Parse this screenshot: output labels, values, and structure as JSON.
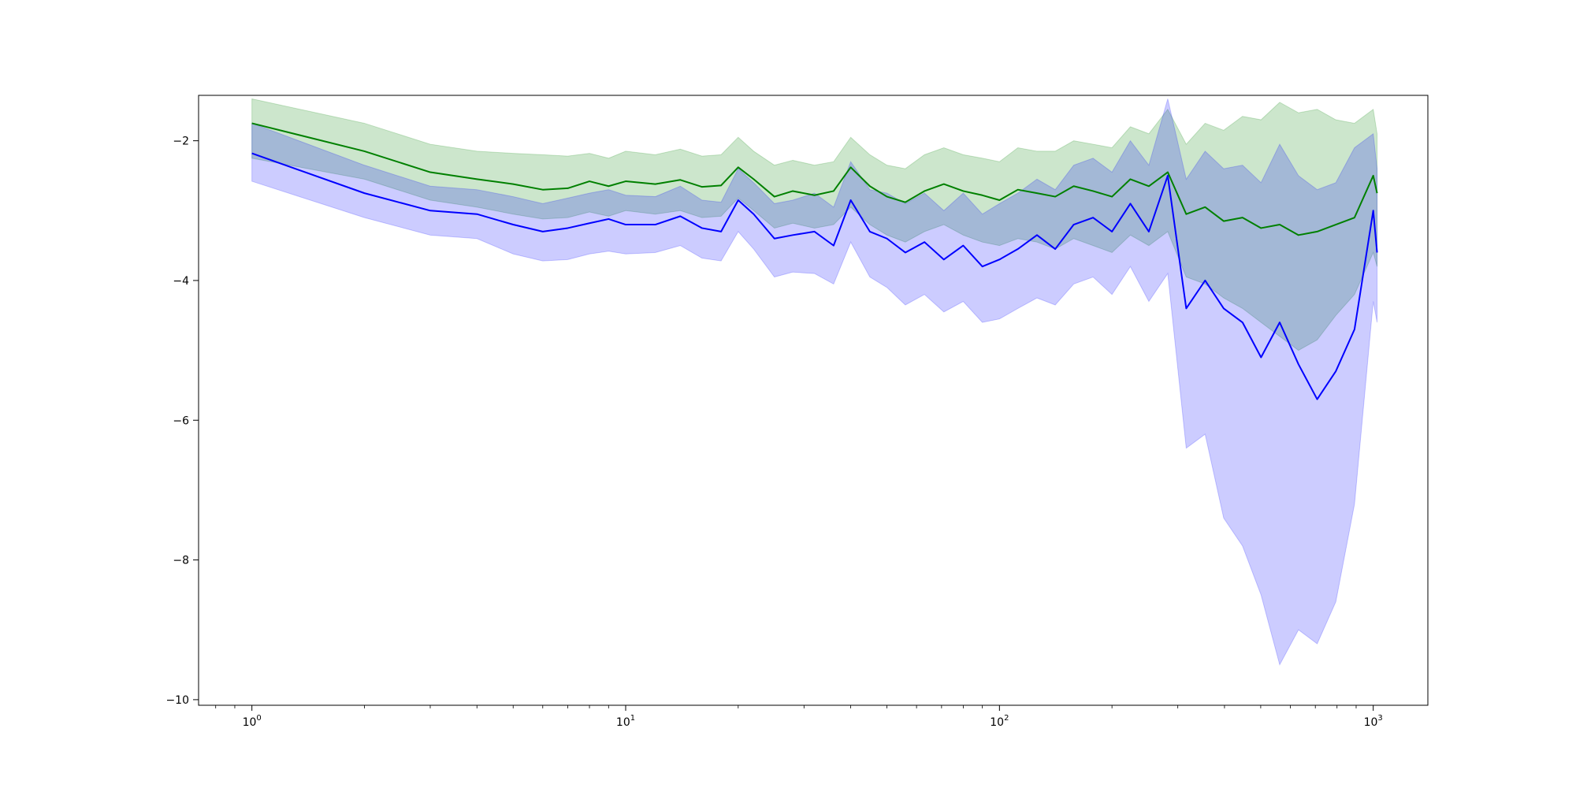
{
  "chart_data": {
    "type": "line",
    "title": "",
    "xlabel": "",
    "ylabel": "",
    "x_scale": "log",
    "xlim": [
      0.72,
      1400
    ],
    "ylim": [
      -10.08,
      -1.35
    ],
    "grid": false,
    "legend": "none",
    "x_ticks": [
      {
        "value": 1,
        "base": "10",
        "exp": "0"
      },
      {
        "value": 10,
        "base": "10",
        "exp": "1"
      },
      {
        "value": 100,
        "base": "10",
        "exp": "2"
      },
      {
        "value": 1000,
        "base": "10",
        "exp": "3"
      }
    ],
    "y_ticks": [
      {
        "value": -2,
        "label": "−2"
      },
      {
        "value": -4,
        "label": "−4"
      },
      {
        "value": -6,
        "label": "−6"
      },
      {
        "value": -8,
        "label": "−8"
      },
      {
        "value": -10,
        "label": "−10"
      }
    ],
    "series": [
      {
        "color": "#008000",
        "band_color": "#008000",
        "band_opacity": 0.2,
        "x": [
          1,
          2,
          3,
          4,
          5,
          6,
          7,
          8,
          9,
          10,
          12,
          14,
          16,
          18,
          20,
          22,
          25,
          28,
          32,
          36,
          40,
          45,
          50,
          56,
          63,
          71,
          80,
          90,
          100,
          112,
          126,
          141,
          158,
          178,
          200,
          224,
          251,
          282,
          316,
          355,
          398,
          447,
          501,
          562,
          631,
          708,
          794,
          891,
          1000,
          1024
        ],
        "values": [
          -1.75,
          -2.15,
          -2.45,
          -2.55,
          -2.62,
          -2.7,
          -2.68,
          -2.58,
          -2.65,
          -2.58,
          -2.62,
          -2.56,
          -2.66,
          -2.64,
          -2.38,
          -2.55,
          -2.8,
          -2.72,
          -2.78,
          -2.72,
          -2.38,
          -2.65,
          -2.8,
          -2.88,
          -2.72,
          -2.62,
          -2.72,
          -2.78,
          -2.85,
          -2.7,
          -2.75,
          -2.8,
          -2.65,
          -2.72,
          -2.8,
          -2.55,
          -2.65,
          -2.45,
          -3.05,
          -2.95,
          -3.15,
          -3.1,
          -3.25,
          -3.2,
          -3.35,
          -3.3,
          -3.2,
          -3.1,
          -2.5,
          -2.75
        ],
        "lower": [
          -2.25,
          -2.55,
          -2.85,
          -2.95,
          -3.05,
          -3.12,
          -3.1,
          -3.02,
          -3.08,
          -3.0,
          -3.05,
          -3.0,
          -3.1,
          -3.08,
          -2.82,
          -3.0,
          -3.25,
          -3.18,
          -3.25,
          -3.2,
          -2.95,
          -3.2,
          -3.35,
          -3.45,
          -3.3,
          -3.2,
          -3.35,
          -3.45,
          -3.5,
          -3.4,
          -3.45,
          -3.55,
          -3.4,
          -3.5,
          -3.6,
          -3.35,
          -3.5,
          -3.3,
          -3.95,
          -4.05,
          -4.25,
          -4.4,
          -4.6,
          -4.8,
          -5.0,
          -4.85,
          -4.5,
          -4.2,
          -3.6,
          -3.8
        ],
        "upper": [
          -1.4,
          -1.75,
          -2.05,
          -2.15,
          -2.18,
          -2.2,
          -2.22,
          -2.18,
          -2.25,
          -2.15,
          -2.2,
          -2.12,
          -2.22,
          -2.2,
          -1.95,
          -2.15,
          -2.35,
          -2.28,
          -2.35,
          -2.3,
          -1.95,
          -2.2,
          -2.35,
          -2.4,
          -2.2,
          -2.1,
          -2.2,
          -2.25,
          -2.3,
          -2.1,
          -2.15,
          -2.15,
          -2.0,
          -2.05,
          -2.1,
          -1.8,
          -1.9,
          -1.55,
          -2.05,
          -1.75,
          -1.85,
          -1.65,
          -1.7,
          -1.45,
          -1.6,
          -1.55,
          -1.7,
          -1.75,
          -1.55,
          -1.9
        ]
      },
      {
        "color": "#0000ff",
        "band_color": "#0000ff",
        "band_opacity": 0.2,
        "x": [
          1,
          2,
          3,
          4,
          5,
          6,
          7,
          8,
          9,
          10,
          12,
          14,
          16,
          18,
          20,
          22,
          25,
          28,
          32,
          36,
          40,
          45,
          50,
          56,
          63,
          71,
          80,
          90,
          100,
          112,
          126,
          141,
          158,
          178,
          200,
          224,
          251,
          282,
          316,
          355,
          398,
          447,
          501,
          562,
          631,
          708,
          794,
          891,
          1000,
          1024
        ],
        "values": [
          -2.18,
          -2.75,
          -3.0,
          -3.05,
          -3.2,
          -3.3,
          -3.25,
          -3.18,
          -3.12,
          -3.2,
          -3.2,
          -3.08,
          -3.25,
          -3.3,
          -2.85,
          -3.05,
          -3.4,
          -3.35,
          -3.3,
          -3.5,
          -2.85,
          -3.3,
          -3.4,
          -3.6,
          -3.45,
          -3.7,
          -3.5,
          -3.8,
          -3.7,
          -3.55,
          -3.35,
          -3.55,
          -3.2,
          -3.1,
          -3.3,
          -2.9,
          -3.3,
          -2.5,
          -4.4,
          -4.0,
          -4.4,
          -4.6,
          -5.1,
          -4.6,
          -5.2,
          -5.7,
          -5.3,
          -4.7,
          -3.0,
          -3.6
        ],
        "lower": [
          -2.58,
          -3.1,
          -3.35,
          -3.4,
          -3.62,
          -3.72,
          -3.7,
          -3.62,
          -3.58,
          -3.62,
          -3.6,
          -3.5,
          -3.68,
          -3.72,
          -3.3,
          -3.55,
          -3.95,
          -3.88,
          -3.9,
          -4.05,
          -3.45,
          -3.95,
          -4.1,
          -4.35,
          -4.2,
          -4.45,
          -4.3,
          -4.6,
          -4.55,
          -4.4,
          -4.25,
          -4.35,
          -4.05,
          -3.95,
          -4.2,
          -3.8,
          -4.3,
          -3.9,
          -6.4,
          -6.2,
          -7.4,
          -7.8,
          -8.5,
          -9.5,
          -9.0,
          -9.2,
          -8.6,
          -7.2,
          -4.3,
          -4.6
        ],
        "upper": [
          -1.75,
          -2.35,
          -2.65,
          -2.7,
          -2.8,
          -2.9,
          -2.82,
          -2.75,
          -2.7,
          -2.78,
          -2.8,
          -2.65,
          -2.85,
          -2.88,
          -2.4,
          -2.6,
          -2.9,
          -2.85,
          -2.75,
          -2.95,
          -2.3,
          -2.7,
          -2.75,
          -2.9,
          -2.75,
          -3.0,
          -2.75,
          -3.05,
          -2.9,
          -2.75,
          -2.55,
          -2.7,
          -2.35,
          -2.25,
          -2.45,
          -2.0,
          -2.35,
          -1.4,
          -2.55,
          -2.15,
          -2.4,
          -2.35,
          -2.6,
          -2.05,
          -2.5,
          -2.7,
          -2.6,
          -2.1,
          -1.9,
          -2.4
        ]
      }
    ]
  }
}
